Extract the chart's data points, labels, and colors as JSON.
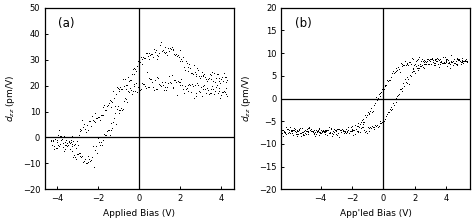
{
  "fig_width": 4.74,
  "fig_height": 2.22,
  "dpi": 100,
  "background_color": "#ffffff",
  "panel_a": {
    "label": "(a)",
    "xlabel": "Applied Bias (V)",
    "ylabel_math": "$d_{zz}$ (pm/V)",
    "xlim": [
      -4.6,
      4.6
    ],
    "ylim": [
      -20,
      50
    ],
    "yticks": [
      -20,
      -10,
      0,
      10,
      20,
      30,
      40,
      50
    ],
    "xticks": [
      -4,
      -2,
      0,
      2,
      4
    ]
  },
  "panel_b": {
    "label": "(b)",
    "xlabel": "App'led Bias (V)",
    "ylabel_math": "$d_{zz}$ (pm/V)",
    "xlim": [
      -6.5,
      5.5
    ],
    "ylim": [
      -20,
      20
    ],
    "yticks": [
      -20,
      -15,
      -10,
      -5,
      0,
      5,
      10,
      15,
      20
    ],
    "xticks": [
      -4,
      -2,
      0,
      2,
      4
    ]
  }
}
